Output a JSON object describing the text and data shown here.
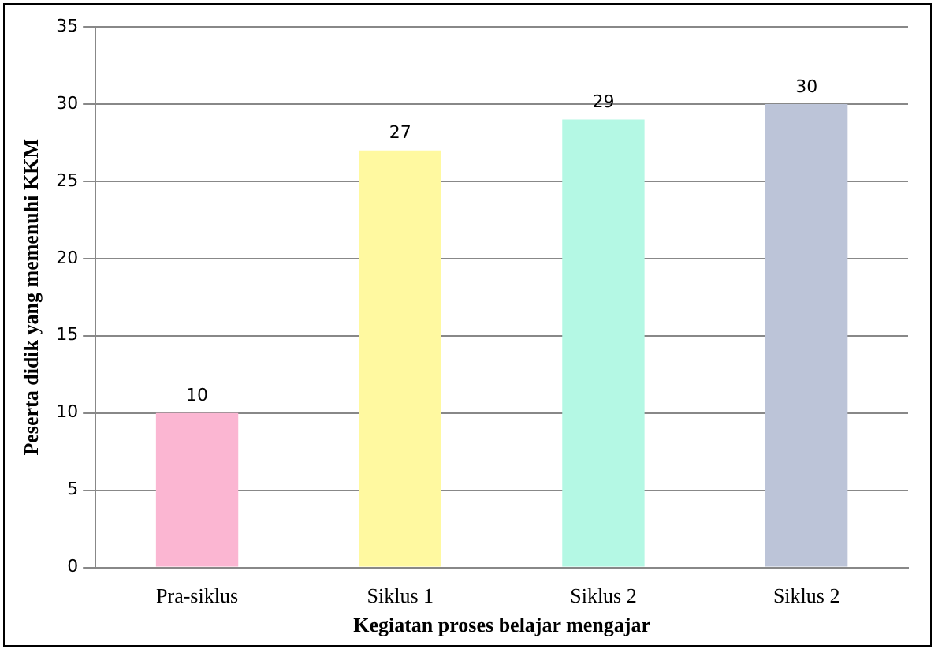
{
  "chart_data": {
    "type": "bar",
    "xlabel": "Kegiatan proses belajar mengajar",
    "ylabel": "Peserta didik yang memenuhi KKM",
    "categories": [
      "Pra-siklus",
      "Siklus 1",
      "Siklus 2",
      "Siklus 2"
    ],
    "values": [
      10,
      27,
      29,
      30
    ],
    "colors": [
      "#fbb6d2",
      "#fff9a0",
      "#b4f8e4",
      "#bcc4d8"
    ],
    "ylim": [
      0,
      35
    ],
    "yticks": [
      0,
      5,
      10,
      15,
      20,
      25,
      30,
      35
    ],
    "grid": "y",
    "data_labels": true,
    "legend": false
  }
}
